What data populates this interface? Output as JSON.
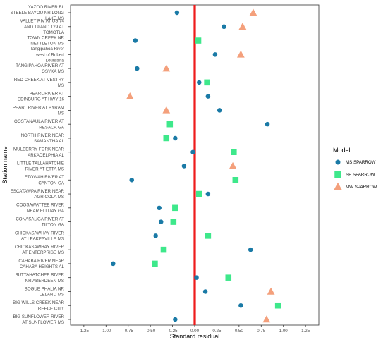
{
  "chart_data": {
    "type": "scatter",
    "xlabel": "Standard residual",
    "ylabel": "Station name",
    "xlim": [
      -1.4,
      1.4
    ],
    "x_ticks": [
      "-1.25",
      "-1.00",
      "-0.75",
      "-0.50",
      "-0.25",
      "0.00",
      "0.25",
      "0.50",
      "0.75",
      "1.00",
      "1.25"
    ],
    "x_tick_values": [
      -1.25,
      -1.0,
      -0.75,
      -0.5,
      -0.25,
      0.0,
      0.25,
      0.5,
      0.75,
      1.0,
      1.25
    ],
    "reference_line": {
      "x": 0,
      "color": "#ee1c1c"
    },
    "grid": false,
    "legend": {
      "title": "Model",
      "position": "right",
      "entries": [
        {
          "label": "MS SPARROW",
          "shape": "circle",
          "color": "#1a7aa6"
        },
        {
          "label": "SE SPARROW",
          "shape": "square",
          "color": "#3ee88b"
        },
        {
          "label": "MW SPARROW",
          "shape": "triangle",
          "color": "#f4a07c"
        }
      ]
    },
    "categories": [
      [
        "YAZOO RIVER BL",
        "STEELE BAYOU NR LONG",
        "LAKE MS"
      ],
      [
        "VALLEY RIV AT US 74",
        "AND 19 AND 129 AT",
        "TOMOTLA"
      ],
      [
        "TOWN CREEK NR",
        "NETTLETON MS"
      ],
      [
        "Tangipahoa River",
        "west of Robert",
        "Louisiana"
      ],
      [
        "TANGIPAHOA RIVER AT",
        "OSYKA MS"
      ],
      [
        "RED CREEK AT VESTRY",
        "MS"
      ],
      [
        "PEARL RIVER AT",
        "EDINBURG AT HWY 16"
      ],
      [
        "PEARL RIVER AT BYRAM",
        "MS"
      ],
      [
        "OOSTANAULA RIVER AT",
        "RESACA GA"
      ],
      [
        "NORTH RIVER NEAR",
        "SAMANTHA AL"
      ],
      [
        "MULBERRY FORK NEAR",
        "ARKADELPHIA AL"
      ],
      [
        "LITTLE TALLAHATCHIE",
        "RIVER AT ETTA MS"
      ],
      [
        "ETOWAH RIVER AT",
        "CANTON GA"
      ],
      [
        "ESCATAWPA RIVER NEAR",
        "AGRICOLA MS"
      ],
      [
        "COOSAWATTEE RIVER",
        "NEAR ELLIJAY GA"
      ],
      [
        "CONASAUGA RIVER AT",
        "TILTON GA"
      ],
      [
        "CHICKASAWHAY RIVER",
        "AT LEAKESVILLE MS"
      ],
      [
        "CHICKASAWHAY RIVER",
        "AT ENTERPRISE MS"
      ],
      [
        "CAHABA RIVER NEAR",
        "CAHABA HEIGHTS AL"
      ],
      [
        "BUTTAHATCHEE RIVER",
        "NR ABERDEEN MS"
      ],
      [
        "BOGUE PHALIA NR",
        "LELAND MS"
      ],
      [
        "BIG WILLS CREEK NEAR",
        "REECE CITY"
      ],
      [
        "BIG SUNFLOWER RIVER",
        "AT SUNFLOWER MS"
      ]
    ],
    "series": [
      {
        "name": "MS SPARROW",
        "points": [
          {
            "station": 0,
            "x": -0.2
          },
          {
            "station": 1,
            "x": 0.33
          },
          {
            "station": 2,
            "x": -0.67
          },
          {
            "station": 3,
            "x": 0.23
          },
          {
            "station": 4,
            "x": -0.65
          },
          {
            "station": 5,
            "x": 0.05
          },
          {
            "station": 6,
            "x": 0.15
          },
          {
            "station": 7,
            "x": 0.28
          },
          {
            "station": 8,
            "x": 0.82
          },
          {
            "station": 9,
            "x": -0.22
          },
          {
            "station": 10,
            "x": -0.02
          },
          {
            "station": 11,
            "x": -0.12
          },
          {
            "station": 12,
            "x": -0.71
          },
          {
            "station": 13,
            "x": 0.15
          },
          {
            "station": 14,
            "x": -0.4
          },
          {
            "station": 15,
            "x": -0.38
          },
          {
            "station": 16,
            "x": -0.44
          },
          {
            "station": 17,
            "x": 0.63
          },
          {
            "station": 18,
            "x": -0.92
          },
          {
            "station": 19,
            "x": 0.02
          },
          {
            "station": 20,
            "x": 0.12
          },
          {
            "station": 21,
            "x": 0.52
          },
          {
            "station": 22,
            "x": -0.22
          }
        ]
      },
      {
        "name": "SE SPARROW",
        "points": [
          {
            "station": 2,
            "x": 0.04
          },
          {
            "station": 5,
            "x": 0.14
          },
          {
            "station": 8,
            "x": -0.28
          },
          {
            "station": 9,
            "x": -0.32
          },
          {
            "station": 10,
            "x": 0.44
          },
          {
            "station": 12,
            "x": 0.46
          },
          {
            "station": 13,
            "x": 0.05
          },
          {
            "station": 14,
            "x": -0.22
          },
          {
            "station": 15,
            "x": -0.24
          },
          {
            "station": 16,
            "x": 0.15
          },
          {
            "station": 17,
            "x": -0.35
          },
          {
            "station": 18,
            "x": -0.45
          },
          {
            "station": 19,
            "x": 0.38
          },
          {
            "station": 21,
            "x": 0.94
          }
        ]
      },
      {
        "name": "MW SPARROW",
        "points": [
          {
            "station": 0,
            "x": 0.66
          },
          {
            "station": 1,
            "x": 0.54
          },
          {
            "station": 3,
            "x": 0.52
          },
          {
            "station": 4,
            "x": -0.32
          },
          {
            "station": 6,
            "x": -0.73
          },
          {
            "station": 7,
            "x": -0.32
          },
          {
            "station": 11,
            "x": 0.43
          },
          {
            "station": 20,
            "x": 0.86
          },
          {
            "station": 22,
            "x": 0.81
          }
        ]
      }
    ]
  }
}
